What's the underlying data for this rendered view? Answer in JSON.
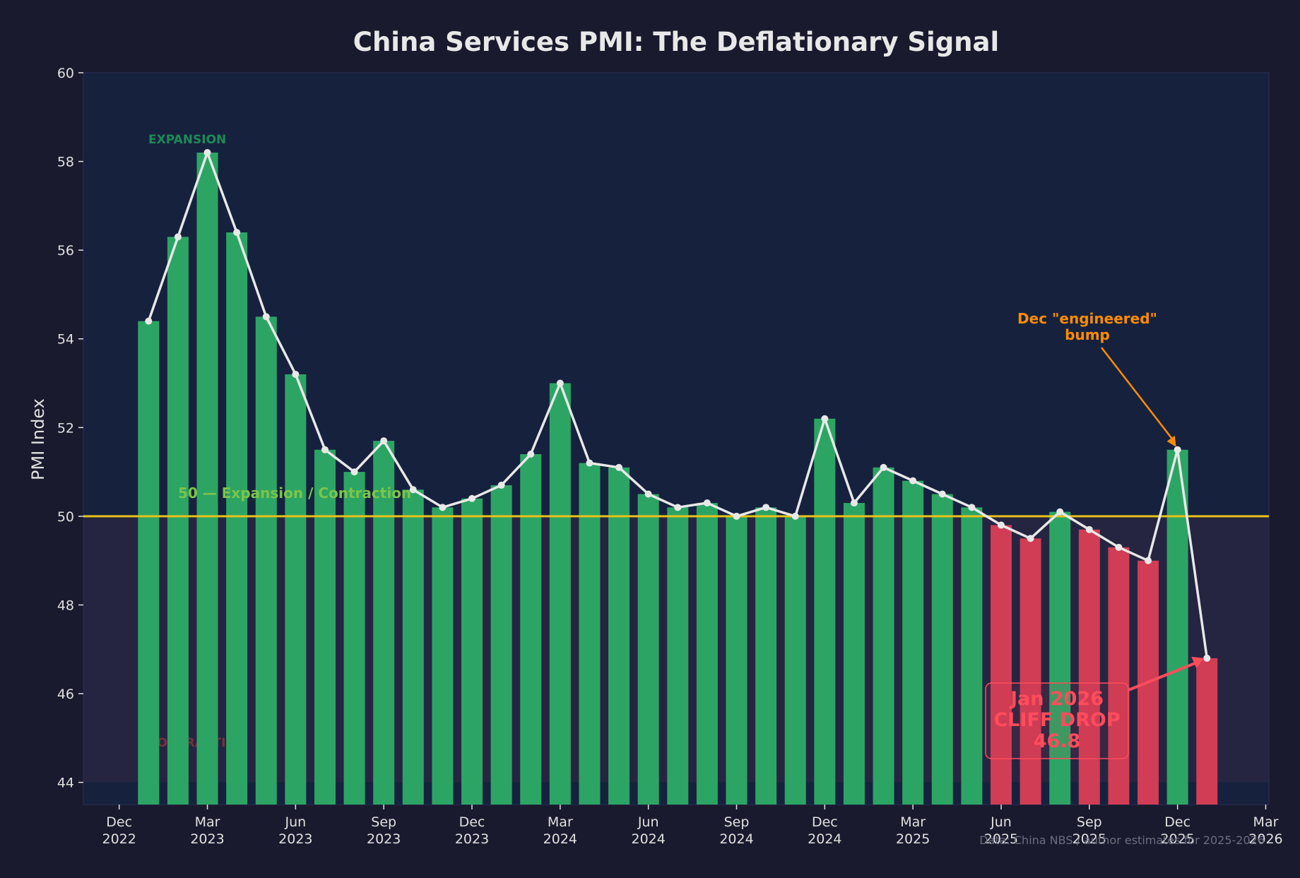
{
  "chart_data": {
    "type": "bar",
    "title": "China Services PMI: The Deflationary Signal",
    "ylabel": "PMI Index",
    "xlabel": "",
    "ylim": [
      43.5,
      60
    ],
    "yticks": [
      44,
      46,
      48,
      50,
      52,
      54,
      56,
      58,
      60
    ],
    "threshold": 50,
    "threshold_label": "50 — Expansion / Contraction",
    "zone_labels": {
      "expansion": "EXPANSION",
      "contraction": "CONTRACTION"
    },
    "x_ticks": [
      {
        "top": "Dec",
        "bottom": "2022",
        "index": -1
      },
      {
        "top": "Mar",
        "bottom": "2023",
        "index": 2
      },
      {
        "top": "Jun",
        "bottom": "2023",
        "index": 5
      },
      {
        "top": "Sep",
        "bottom": "2023",
        "index": 8
      },
      {
        "top": "Dec",
        "bottom": "2023",
        "index": 11
      },
      {
        "top": "Mar",
        "bottom": "2024",
        "index": 14
      },
      {
        "top": "Jun",
        "bottom": "2024",
        "index": 17
      },
      {
        "top": "Sep",
        "bottom": "2024",
        "index": 20
      },
      {
        "top": "Dec",
        "bottom": "2024",
        "index": 23
      },
      {
        "top": "Mar",
        "bottom": "2025",
        "index": 26
      },
      {
        "top": "Jun",
        "bottom": "2025",
        "index": 29
      },
      {
        "top": "Sep",
        "bottom": "2025",
        "index": 32
      },
      {
        "top": "Dec",
        "bottom": "2025",
        "index": 35
      },
      {
        "top": "Mar",
        "bottom": "2026",
        "index": 38
      }
    ],
    "categories": [
      "Jan 2023",
      "Feb 2023",
      "Mar 2023",
      "Apr 2023",
      "May 2023",
      "Jun 2023",
      "Jul 2023",
      "Aug 2023",
      "Sep 2023",
      "Oct 2023",
      "Nov 2023",
      "Dec 2023",
      "Jan 2024",
      "Feb 2024",
      "Mar 2024",
      "Apr 2024",
      "May 2024",
      "Jun 2024",
      "Jul 2024",
      "Aug 2024",
      "Sep 2024",
      "Oct 2024",
      "Nov 2024",
      "Dec 2024",
      "Jan 2025",
      "Feb 2025",
      "Mar 2025",
      "Apr 2025",
      "May 2025",
      "Jun 2025",
      "Jul 2025",
      "Aug 2025",
      "Sep 2025",
      "Oct 2025",
      "Nov 2025",
      "Dec 2025",
      "Jan 2026"
    ],
    "values": [
      54.4,
      56.3,
      58.2,
      56.4,
      54.5,
      53.2,
      51.5,
      51.0,
      51.7,
      50.6,
      50.2,
      50.4,
      50.7,
      51.4,
      53.0,
      51.2,
      51.1,
      50.5,
      50.2,
      50.3,
      50.0,
      50.2,
      50.0,
      52.2,
      50.3,
      51.1,
      50.8,
      50.5,
      50.2,
      49.8,
      49.5,
      50.1,
      49.7,
      49.3,
      49.0,
      51.5,
      46.8
    ],
    "colors": {
      "expansion": "#2ca564",
      "contraction": "#d03d55",
      "line": "#e8e8e8",
      "threshold": "#e6c21a",
      "plot_bg": "#16213e",
      "page_bg": "#1a1a2e",
      "contraction_bg": "#252541"
    },
    "annotations": [
      {
        "lines": [
          "Dec \"engineered\"",
          "bump"
        ],
        "target_index": 35,
        "color": "#ff8c00"
      },
      {
        "lines": [
          "Jan 2026",
          "CLIFF DROP",
          "46.8"
        ],
        "target_index": 36,
        "color": "#ff4c5c"
      }
    ],
    "source": "Data: China NBS / author estimates for 2025-2026"
  }
}
